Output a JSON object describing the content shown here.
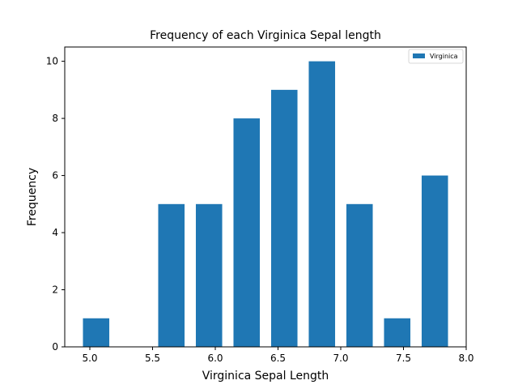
{
  "chart_data": {
    "type": "bar",
    "title": "Frequency of each Virginica Sepal length",
    "xlabel": "Virginica Sepal Length",
    "ylabel": "Frequency",
    "xlim": [
      4.8,
      8.0
    ],
    "ylim": [
      0,
      10.5
    ],
    "xticks": [
      "5.0",
      "5.5",
      "6.0",
      "6.5",
      "7.0",
      "7.5",
      "8.0"
    ],
    "yticks": [
      "0",
      "2",
      "4",
      "6",
      "8",
      "10"
    ],
    "bar_width": 0.21,
    "grid": false,
    "legend": {
      "position": "top-right",
      "entries": [
        "Virginica"
      ]
    },
    "series": [
      {
        "name": "Virginica",
        "color": "#1f77b4",
        "x": [
          5.05,
          5.65,
          5.95,
          6.25,
          6.55,
          6.85,
          7.15,
          7.45,
          7.75
        ],
        "values": [
          1,
          5,
          5,
          8,
          9,
          10,
          5,
          1,
          6
        ]
      }
    ]
  }
}
